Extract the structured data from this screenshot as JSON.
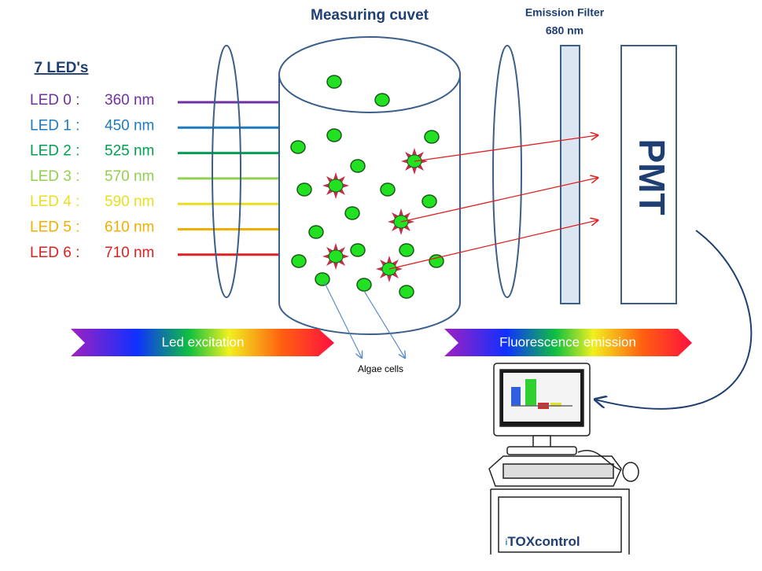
{
  "title": "7 LED's",
  "leds": [
    {
      "label": "LED 0 :",
      "wavelength": "360 nm",
      "color": "#7030a0"
    },
    {
      "label": "LED 1 :",
      "wavelength": "450 nm",
      "color": "#1f7bbf"
    },
    {
      "label": "LED 2 :",
      "wavelength": "525 nm",
      "color": "#00a050"
    },
    {
      "label": "LED 3 :",
      "wavelength": "570 nm",
      "color": "#92d050"
    },
    {
      "label": "LED 4 :",
      "wavelength": "590 nm",
      "color": "#e6e020"
    },
    {
      "label": "LED 5 :",
      "wavelength": "610 nm",
      "color": "#f0b000"
    },
    {
      "label": "LED 6 :",
      "wavelength": "710 nm",
      "color": "#e02020"
    }
  ],
  "cuvet": {
    "label": "Measuring cuvet"
  },
  "filter": {
    "label": "Emission Filter",
    "wavelength": "680 nm"
  },
  "detector": {
    "label": "PMT"
  },
  "bands": {
    "excitation": "Led excitation",
    "emission": "Fluorescence emission"
  },
  "cells": {
    "label": "Algae cells"
  },
  "brand": {
    "prefix": "i",
    "name": "TOXcontrol"
  }
}
